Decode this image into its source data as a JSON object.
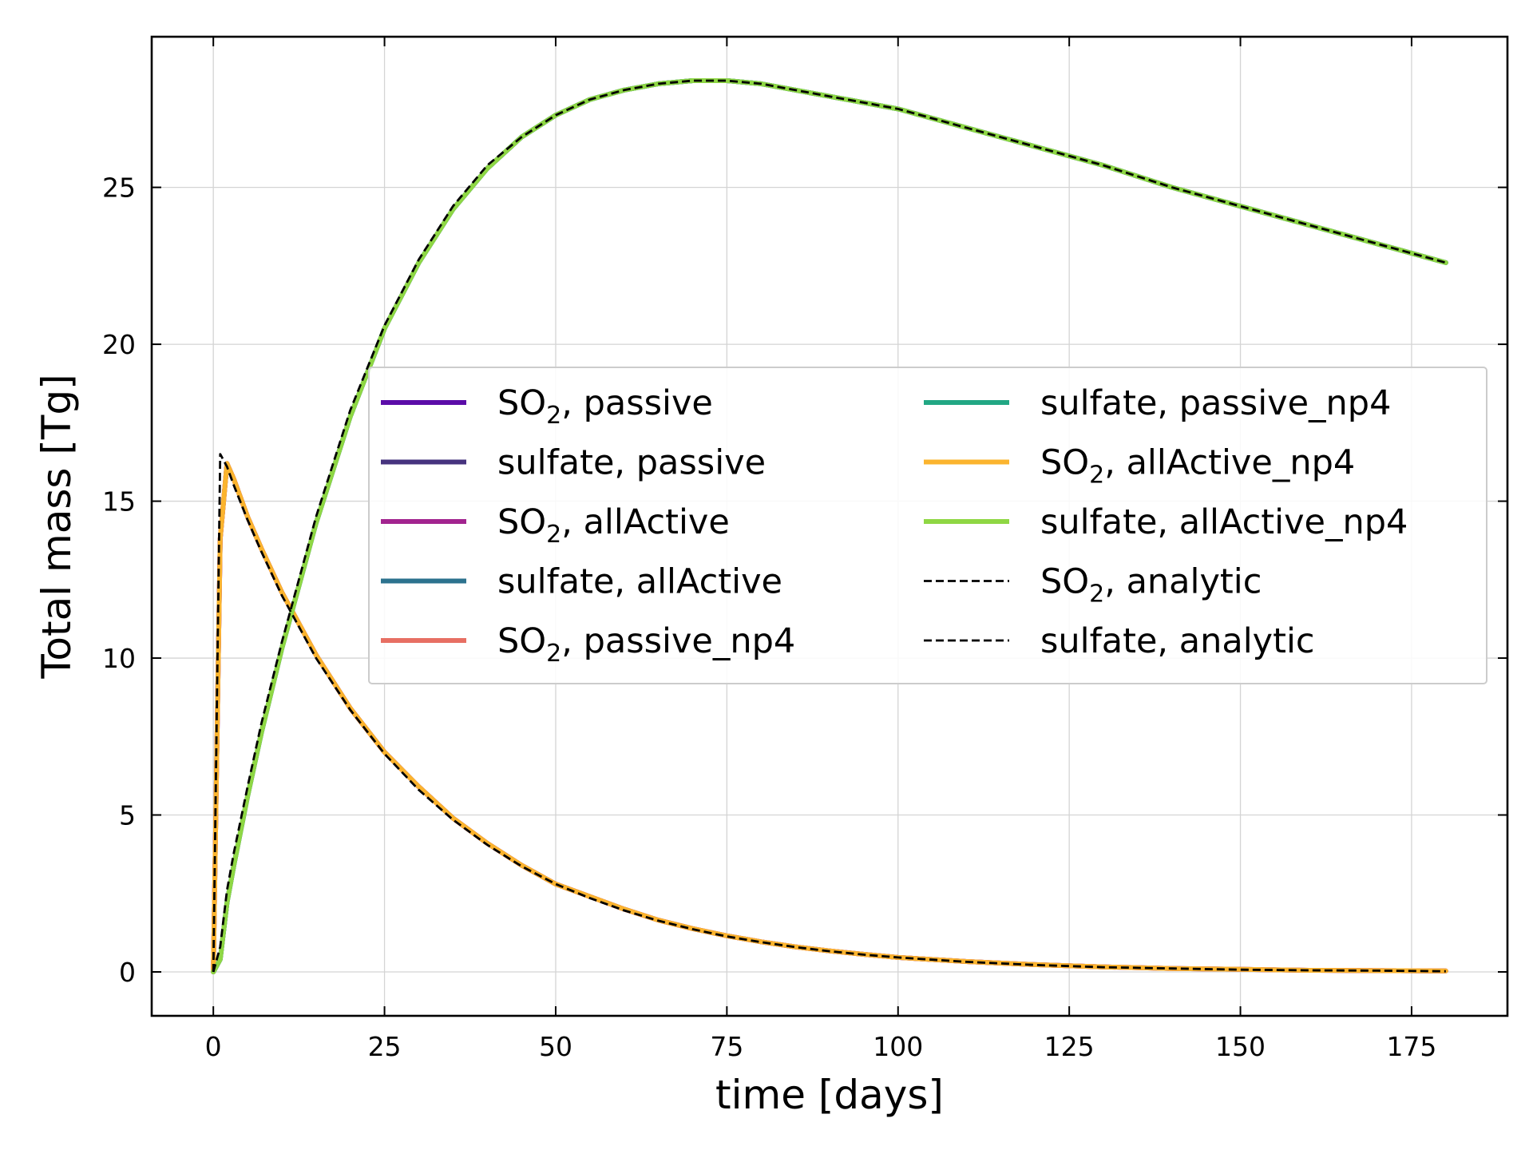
{
  "chart_data": {
    "type": "line",
    "xlabel": "time [days]",
    "ylabel": "Total mass [Tg]",
    "xlim": [
      -9,
      189
    ],
    "ylim": [
      -1.4,
      29.8
    ],
    "xticks": [
      0,
      25,
      50,
      75,
      100,
      125,
      150,
      175
    ],
    "yticks": [
      0,
      5,
      10,
      15,
      20,
      25
    ],
    "grid": true,
    "legend_position": "center",
    "legend_columns": 2,
    "x": [
      0,
      1,
      2,
      3,
      5,
      7,
      10,
      15,
      20,
      25,
      30,
      35,
      40,
      45,
      50,
      55,
      60,
      65,
      70,
      75,
      80,
      85,
      90,
      95,
      100,
      110,
      120,
      130,
      140,
      150,
      160,
      170,
      180
    ],
    "series": [
      {
        "name": "SO",
        "name_sub": "2",
        "name_suffix": ", passive",
        "color": "#5b0ca8",
        "style": "solid",
        "values": [
          0,
          13.8,
          16.2,
          15.7,
          14.5,
          13.5,
          12.1,
          10.1,
          8.4,
          7.0,
          5.9,
          4.9,
          4.1,
          3.4,
          2.8,
          2.4,
          2.0,
          1.65,
          1.38,
          1.15,
          0.96,
          0.8,
          0.67,
          0.56,
          0.46,
          0.33,
          0.23,
          0.16,
          0.11,
          0.08,
          0.05,
          0.04,
          0.03
        ]
      },
      {
        "name": "sulfate, passive",
        "name_sub": "",
        "name_suffix": "",
        "color": "#46337e",
        "style": "solid",
        "values": [
          0,
          0.4,
          2.2,
          3.4,
          5.6,
          7.6,
          10.3,
          14.3,
          17.7,
          20.5,
          22.6,
          24.3,
          25.6,
          26.6,
          27.3,
          27.8,
          28.1,
          28.3,
          28.4,
          28.4,
          28.3,
          28.1,
          27.9,
          27.7,
          27.5,
          26.9,
          26.3,
          25.7,
          25.0,
          24.4,
          23.8,
          23.2,
          22.6
        ]
      },
      {
        "name": "SO",
        "name_sub": "2",
        "name_suffix": ", allActive",
        "color": "#a2248f",
        "style": "solid",
        "values": [
          0,
          13.8,
          16.2,
          15.7,
          14.5,
          13.5,
          12.1,
          10.1,
          8.4,
          7.0,
          5.9,
          4.9,
          4.1,
          3.4,
          2.8,
          2.4,
          2.0,
          1.65,
          1.38,
          1.15,
          0.96,
          0.8,
          0.67,
          0.56,
          0.46,
          0.33,
          0.23,
          0.16,
          0.11,
          0.08,
          0.05,
          0.04,
          0.03
        ]
      },
      {
        "name": "sulfate, allActive",
        "name_sub": "",
        "name_suffix": "",
        "color": "#2c728e",
        "style": "solid",
        "values": [
          0,
          0.4,
          2.2,
          3.4,
          5.6,
          7.6,
          10.3,
          14.3,
          17.7,
          20.5,
          22.6,
          24.3,
          25.6,
          26.6,
          27.3,
          27.8,
          28.1,
          28.3,
          28.4,
          28.4,
          28.3,
          28.1,
          27.9,
          27.7,
          27.5,
          26.9,
          26.3,
          25.7,
          25.0,
          24.4,
          23.8,
          23.2,
          22.6
        ]
      },
      {
        "name": "SO",
        "name_sub": "2",
        "name_suffix": ", passive_np4",
        "color": "#e76f63",
        "style": "solid",
        "values": [
          0,
          13.8,
          16.2,
          15.7,
          14.5,
          13.5,
          12.1,
          10.1,
          8.4,
          7.0,
          5.9,
          4.9,
          4.1,
          3.4,
          2.8,
          2.4,
          2.0,
          1.65,
          1.38,
          1.15,
          0.96,
          0.8,
          0.67,
          0.56,
          0.46,
          0.33,
          0.23,
          0.16,
          0.11,
          0.08,
          0.05,
          0.04,
          0.03
        ]
      },
      {
        "name": "sulfate, passive_np4",
        "name_sub": "",
        "name_suffix": "",
        "color": "#22a784",
        "style": "solid",
        "values": [
          0,
          0.4,
          2.2,
          3.4,
          5.6,
          7.6,
          10.3,
          14.3,
          17.7,
          20.5,
          22.6,
          24.3,
          25.6,
          26.6,
          27.3,
          27.8,
          28.1,
          28.3,
          28.4,
          28.4,
          28.3,
          28.1,
          27.9,
          27.7,
          27.5,
          26.9,
          26.3,
          25.7,
          25.0,
          24.4,
          23.8,
          23.2,
          22.6
        ]
      },
      {
        "name": "SO",
        "name_sub": "2",
        "name_suffix": ", allActive_np4",
        "color": "#fbb42e",
        "style": "solid",
        "values": [
          0,
          13.8,
          16.2,
          15.7,
          14.5,
          13.5,
          12.1,
          10.1,
          8.4,
          7.0,
          5.9,
          4.9,
          4.1,
          3.4,
          2.8,
          2.4,
          2.0,
          1.65,
          1.38,
          1.15,
          0.96,
          0.8,
          0.67,
          0.56,
          0.46,
          0.33,
          0.23,
          0.16,
          0.11,
          0.08,
          0.05,
          0.04,
          0.03
        ]
      },
      {
        "name": "sulfate, allActive_np4",
        "name_sub": "",
        "name_suffix": "",
        "color": "#8fd744",
        "style": "solid",
        "values": [
          0,
          0.4,
          2.2,
          3.4,
          5.6,
          7.6,
          10.3,
          14.3,
          17.7,
          20.5,
          22.6,
          24.3,
          25.6,
          26.6,
          27.3,
          27.8,
          28.1,
          28.3,
          28.4,
          28.4,
          28.3,
          28.1,
          27.9,
          27.7,
          27.5,
          26.9,
          26.3,
          25.7,
          25.0,
          24.4,
          23.8,
          23.2,
          22.6
        ]
      },
      {
        "name": "SO",
        "name_sub": "2",
        "name_suffix": ", analytic",
        "color": "#000000",
        "style": "dashed",
        "values": [
          0,
          16.5,
          16.1,
          15.5,
          14.4,
          13.4,
          12.0,
          10.0,
          8.35,
          6.95,
          5.8,
          4.85,
          4.05,
          3.37,
          2.8,
          2.35,
          1.96,
          1.63,
          1.36,
          1.13,
          0.95,
          0.79,
          0.66,
          0.55,
          0.46,
          0.32,
          0.22,
          0.15,
          0.11,
          0.07,
          0.05,
          0.04,
          0.02
        ]
      },
      {
        "name": "sulfate, analytic",
        "name_sub": "",
        "name_suffix": "",
        "color": "#000000",
        "style": "dashed",
        "values": [
          0,
          0.8,
          2.6,
          3.8,
          5.9,
          7.9,
          10.5,
          14.5,
          17.9,
          20.6,
          22.7,
          24.4,
          25.7,
          26.6,
          27.3,
          27.8,
          28.1,
          28.3,
          28.4,
          28.4,
          28.3,
          28.1,
          27.9,
          27.7,
          27.5,
          26.9,
          26.3,
          25.7,
          25.0,
          24.4,
          23.8,
          23.2,
          22.6
        ]
      }
    ]
  }
}
